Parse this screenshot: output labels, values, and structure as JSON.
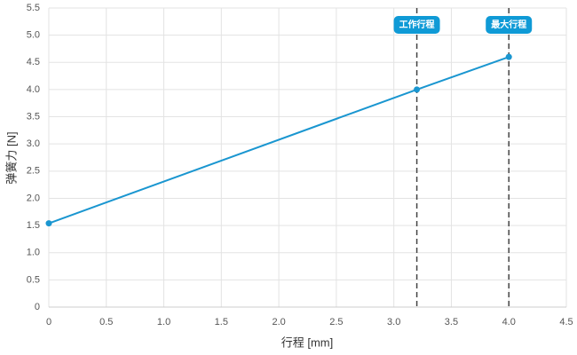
{
  "chart_data": {
    "type": "line",
    "x": [
      0,
      3.2,
      4.0
    ],
    "values": [
      1.54,
      4.0,
      4.6
    ],
    "color": "#1a96d0",
    "xlabel": "行程 [mm]",
    "ylabel": "弹簧力 [N]",
    "xlim": [
      0,
      4.5
    ],
    "ylim": [
      0,
      5.5
    ],
    "xticks": [
      0,
      0.5,
      {
        "value": 1,
        "label": "1.0"
      },
      1.5,
      {
        "value": 2,
        "label": "2.0"
      },
      2.5,
      {
        "value": 3,
        "label": "3.0"
      },
      3.5,
      {
        "value": 4,
        "label": "4.0"
      },
      4.5
    ],
    "yticks": [
      0,
      0.5,
      {
        "value": 1,
        "label": "1.0"
      },
      1.5,
      {
        "value": 2,
        "label": "2.0"
      },
      2.5,
      {
        "value": 3,
        "label": "3.0"
      },
      3.5,
      {
        "value": 4,
        "label": "4.0"
      },
      4.5,
      {
        "value": 5,
        "label": "5.0"
      },
      5.5
    ],
    "grid": true,
    "annotations": [
      {
        "x": 3.2,
        "label": "工作行程"
      },
      {
        "x": 4.0,
        "label": "最大行程"
      }
    ],
    "annotation_color": "#0f9ad6"
  }
}
